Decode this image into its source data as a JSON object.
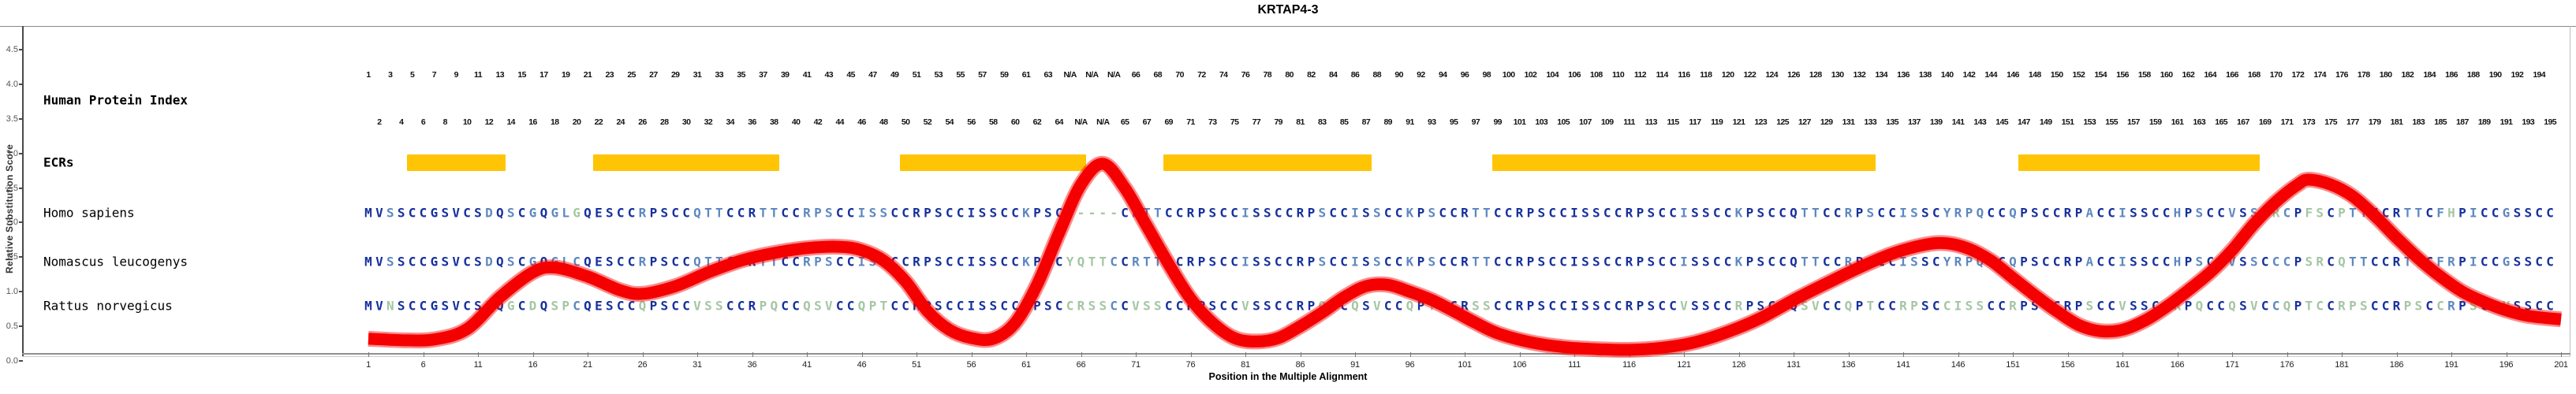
{
  "title": "KRTAP4-3",
  "axes": {
    "y_label": "Relative Substitution Score",
    "x_label": "Position in the Multiple Alignment",
    "y_ticks": [
      "0.0",
      "0.5",
      "1.0",
      "1.5",
      "2.0",
      "2.5",
      "3.0",
      "3.5",
      "4.0",
      "4.5"
    ],
    "x_tick_start": 1,
    "x_tick_step": 5,
    "x_tick_end": 201
  },
  "rows": {
    "human_protein_index_label": "Human Protein Index",
    "ecrs_label": "ECRs"
  },
  "species": [
    {
      "name": "Homo sapiens",
      "sequence": "MVSSCCGSVCSDQSCGQGLGQESCCRPSCCQTTCCRTTCCRPSCCISSCCRPSCCISSCCKPSC-----CRTTCCRPSCCISSCCRPSCCISSCCKPSCCRTTCCRPSCCISSCCRPSCCISSCCKPSCCQTTCCRPSCCISSCYRPQCCQPSCCRPACCISSCCHPSCCVSSCRCPFSCPTTCCRTTCFHPICCGSSCC"
    },
    {
      "name": "Nomascus leucogenys",
      "sequence": "MVSSCCGSVCSDQSCGQGLCQESCCRPSCCQTTCCRTTCCRPSCCISSCCRPSCCISSCCKPSCYQTTCCRTTCCRPSCCISSCCRPSCCISSCCKPSCCRTTCCRPSCCISSCCRPSCCISSCCKPSCCQTTCCRPSCCISSCYRPQCCQPSCCRPACCISSCCHPSCCVSSCCCPSRCQTTCCRTTCFRPICCGSSCC"
    },
    {
      "name": "Rattus norvegicus",
      "sequence": "MVNSCCGSVCSEQGCDQSPCQESCCQPSCCVSSCCRPQCCQSVCCQPTCCRPSCCISSCCRPSCCRSSCCVSSCCRPSCCVSSCCRPQCCQSVCCQPTCCRSSCCRPSCCISSCCRPSCCVSSCCRPSCCQSVCCQPTCCRPSCCISSCCRPSCCRPSCCVSSCCRPQCCQSVCCQPTCCRPSCCRPSCCRPSCCVSSCC"
    }
  ],
  "human_protein_index": {
    "odd_row": [
      "1",
      "3",
      "5",
      "7",
      "9",
      "11",
      "13",
      "15",
      "17",
      "19",
      "21",
      "23",
      "25",
      "27",
      "29",
      "31",
      "33",
      "35",
      "37",
      "39",
      "41",
      "43",
      "45",
      "47",
      "49",
      "51",
      "53",
      "55",
      "57",
      "59",
      "61",
      "63",
      "N/A",
      "N/A",
      "N/A",
      "66",
      "68",
      "70",
      "72",
      "74",
      "76",
      "78",
      "80",
      "82",
      "84",
      "86",
      "88",
      "90",
      "92",
      "94",
      "96",
      "98",
      "100",
      "102",
      "104",
      "106",
      "108",
      "110",
      "112",
      "114",
      "116",
      "118",
      "120",
      "122",
      "124",
      "126",
      "128",
      "130",
      "132",
      "134",
      "136",
      "138",
      "140",
      "142",
      "144",
      "146",
      "148",
      "150",
      "152",
      "154",
      "156",
      "158",
      "160",
      "162",
      "164",
      "166",
      "168",
      "170",
      "172",
      "174",
      "176",
      "178",
      "180",
      "182",
      "184",
      "186",
      "188",
      "190",
      "192",
      "194"
    ],
    "even_row": [
      "2",
      "4",
      "6",
      "8",
      "10",
      "12",
      "14",
      "16",
      "18",
      "20",
      "22",
      "24",
      "26",
      "28",
      "30",
      "32",
      "34",
      "36",
      "38",
      "40",
      "42",
      "44",
      "46",
      "48",
      "50",
      "52",
      "54",
      "56",
      "58",
      "60",
      "62",
      "64",
      "N/A",
      "N/A",
      "65",
      "67",
      "69",
      "71",
      "73",
      "75",
      "77",
      "79",
      "81",
      "83",
      "85",
      "87",
      "89",
      "91",
      "93",
      "95",
      "97",
      "99",
      "101",
      "103",
      "105",
      "107",
      "109",
      "111",
      "113",
      "115",
      "117",
      "119",
      "121",
      "123",
      "125",
      "127",
      "129",
      "131",
      "133",
      "135",
      "137",
      "139",
      "141",
      "143",
      "145",
      "147",
      "149",
      "151",
      "153",
      "155",
      "157",
      "159",
      "161",
      "163",
      "165",
      "167",
      "169",
      "171",
      "173",
      "175",
      "177",
      "179",
      "181",
      "183",
      "185",
      "187",
      "189",
      "191",
      "193",
      "195"
    ]
  },
  "ecr_regions": [
    {
      "start": 5,
      "end": 13
    },
    {
      "start": 22,
      "end": 38
    },
    {
      "start": 50,
      "end": 66
    },
    {
      "start": 74,
      "end": 92
    },
    {
      "start": 104,
      "end": 138
    },
    {
      "start": 152,
      "end": 173
    }
  ],
  "colors": {
    "curve": "#f50000",
    "ecr": "#ffc404",
    "conserved": "#16309c",
    "partial": "#5e88c0",
    "unique": "#a4c6a4"
  },
  "chart_data": {
    "type": "line",
    "title": "KRTAP4-3",
    "xlabel": "Position in the Multiple Alignment",
    "ylabel": "Relative Substitution Score",
    "xlim": [
      1,
      201
    ],
    "ylim": [
      0,
      4.75
    ],
    "grid": false,
    "series": [
      {
        "name": "Relative Substitution Score",
        "color": "#f50000",
        "points": [
          [
            1,
            0.32
          ],
          [
            4,
            0.3
          ],
          [
            7,
            0.31
          ],
          [
            10,
            0.46
          ],
          [
            13,
            0.92
          ],
          [
            16,
            1.28
          ],
          [
            18,
            1.35
          ],
          [
            21,
            1.22
          ],
          [
            24,
            1.02
          ],
          [
            26,
            0.97
          ],
          [
            29,
            1.08
          ],
          [
            32,
            1.28
          ],
          [
            35,
            1.45
          ],
          [
            38,
            1.56
          ],
          [
            41,
            1.63
          ],
          [
            44,
            1.65
          ],
          [
            46,
            1.6
          ],
          [
            48,
            1.45
          ],
          [
            50,
            1.15
          ],
          [
            52,
            0.72
          ],
          [
            54,
            0.45
          ],
          [
            56,
            0.33
          ],
          [
            58,
            0.32
          ],
          [
            60,
            0.55
          ],
          [
            62,
            1.1
          ],
          [
            64,
            1.85
          ],
          [
            66,
            2.55
          ],
          [
            68,
            2.85
          ],
          [
            70,
            2.5
          ],
          [
            72,
            1.95
          ],
          [
            74,
            1.4
          ],
          [
            76,
            0.9
          ],
          [
            78,
            0.55
          ],
          [
            80,
            0.33
          ],
          [
            82,
            0.28
          ],
          [
            84,
            0.33
          ],
          [
            86,
            0.5
          ],
          [
            88,
            0.7
          ],
          [
            90,
            0.92
          ],
          [
            92,
            1.08
          ],
          [
            94,
            1.1
          ],
          [
            96,
            1.0
          ],
          [
            98,
            0.88
          ],
          [
            100,
            0.72
          ],
          [
            102,
            0.55
          ],
          [
            104,
            0.4
          ],
          [
            107,
            0.27
          ],
          [
            110,
            0.2
          ],
          [
            113,
            0.17
          ],
          [
            116,
            0.16
          ],
          [
            119,
            0.19
          ],
          [
            122,
            0.27
          ],
          [
            125,
            0.42
          ],
          [
            128,
            0.62
          ],
          [
            131,
            0.88
          ],
          [
            134,
            1.12
          ],
          [
            137,
            1.35
          ],
          [
            140,
            1.55
          ],
          [
            143,
            1.68
          ],
          [
            145,
            1.7
          ],
          [
            147,
            1.62
          ],
          [
            149,
            1.45
          ],
          [
            151,
            1.2
          ],
          [
            153,
            0.95
          ],
          [
            155,
            0.72
          ],
          [
            157,
            0.52
          ],
          [
            159,
            0.43
          ],
          [
            161,
            0.45
          ],
          [
            163,
            0.58
          ],
          [
            165,
            0.78
          ],
          [
            167,
            1.02
          ],
          [
            169,
            1.28
          ],
          [
            171,
            1.6
          ],
          [
            173,
            1.98
          ],
          [
            175,
            2.3
          ],
          [
            177,
            2.55
          ],
          [
            178,
            2.62
          ],
          [
            180,
            2.55
          ],
          [
            182,
            2.38
          ],
          [
            184,
            2.1
          ],
          [
            186,
            1.78
          ],
          [
            188,
            1.48
          ],
          [
            190,
            1.22
          ],
          [
            192,
            1.0
          ],
          [
            194,
            0.85
          ],
          [
            196,
            0.73
          ],
          [
            198,
            0.65
          ],
          [
            201,
            0.6
          ]
        ]
      }
    ]
  }
}
